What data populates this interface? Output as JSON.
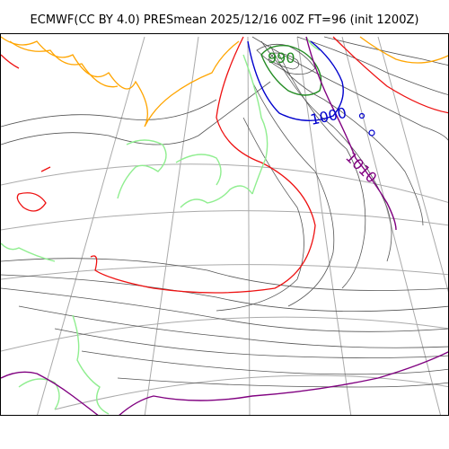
{
  "title": "ECMWF(CC BY 4.0) PRESmean 2025/12/16 00Z FT=96 (init 1200Z)",
  "contour_labels": [
    {
      "text": "990",
      "color": "#228b22"
    },
    {
      "text": "1000",
      "color": "#0000cd"
    },
    {
      "text": "1010",
      "color": "#800080"
    }
  ],
  "colors": {
    "isobar": "#555555",
    "graticule": "#aaaaaa",
    "coast": "#90ee90",
    "red_contour": "#ee1111",
    "orange_contour": "#ffa500",
    "green_contour": "#228b22",
    "blue_contour": "#0000cd",
    "purple_contour": "#800080"
  }
}
